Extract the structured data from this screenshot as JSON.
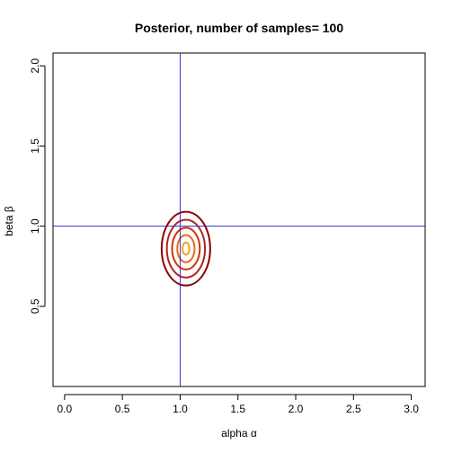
{
  "chart_data": {
    "type": "contour",
    "title": "Posterior, number of samples= 100",
    "xlabel": "alpha α",
    "ylabel": "beta β",
    "xlim": [
      -0.1,
      3.12
    ],
    "ylim": [
      0.0,
      2.08
    ],
    "xticks": [
      {
        "value": 0.0,
        "label": "0.0"
      },
      {
        "value": 0.5,
        "label": "0.5"
      },
      {
        "value": 1.0,
        "label": "1.0"
      },
      {
        "value": 1.5,
        "label": "1.5"
      },
      {
        "value": 2.0,
        "label": "2.0"
      },
      {
        "value": 2.5,
        "label": "2.5"
      },
      {
        "value": 3.0,
        "label": "3.0"
      }
    ],
    "yticks": [
      {
        "value": 0.5,
        "label": "0.5"
      },
      {
        "value": 1.0,
        "label": "1.0"
      },
      {
        "value": 1.5,
        "label": "1.5"
      },
      {
        "value": 2.0,
        "label": "2.0"
      }
    ],
    "reference_lines": {
      "x": 1.0,
      "y": 1.0,
      "color": "#3333cc"
    },
    "contours": {
      "center": [
        1.05,
        0.86
      ],
      "levels": [
        {
          "rx": 0.21,
          "ry": 0.23,
          "color": "#8b0000"
        },
        {
          "rx": 0.165,
          "ry": 0.18,
          "color": "#b22222"
        },
        {
          "rx": 0.12,
          "ry": 0.13,
          "color": "#cd3700"
        },
        {
          "rx": 0.075,
          "ry": 0.085,
          "color": "#e86b18"
        },
        {
          "rx": 0.03,
          "ry": 0.038,
          "color": "#f4a020"
        }
      ]
    }
  }
}
